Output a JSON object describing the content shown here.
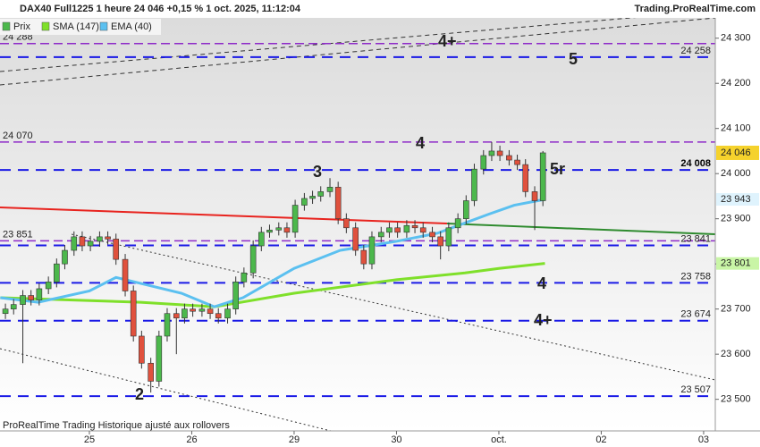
{
  "chart_data": {
    "type": "candlestick",
    "title": "DAX40 Full1225 1 heure 24 046 +0,15 % 1 oct. 2025, 11:12:04",
    "source": "Trading.ProRealTime.com",
    "footer": "ProRealTime Trading  Historique ajusté aux rollovers",
    "xlim": [
      -0.873,
      6.114
    ],
    "xticks": [
      {
        "value": 0,
        "label": "25"
      },
      {
        "value": 1,
        "label": "26"
      },
      {
        "value": 2,
        "label": "29"
      },
      {
        "value": 3,
        "label": "30"
      },
      {
        "value": 4,
        "label": "oct."
      },
      {
        "value": 5,
        "label": "02"
      },
      {
        "value": 6,
        "label": "03"
      }
    ],
    "ylim": [
      23430,
      24345
    ],
    "yticks": [
      {
        "value": 23500,
        "label": "23 500"
      },
      {
        "value": 23600,
        "label": "23 600"
      },
      {
        "value": 23700,
        "label": "23 700"
      },
      {
        "value": 23800,
        "label": "23 800"
      },
      {
        "value": 23900,
        "label": "23 900"
      },
      {
        "value": 24000,
        "label": "24 000"
      },
      {
        "value": 24100,
        "label": "24 100"
      },
      {
        "value": 24200,
        "label": "24 200"
      },
      {
        "value": 24300,
        "label": "24 300"
      }
    ],
    "series": [
      {
        "name": "Prix",
        "up_color": "#4cb84c",
        "down_color": "#e0513d",
        "last_label": "24 046",
        "x": [
          -0.82,
          -0.74,
          -0.65,
          -0.57,
          -0.49,
          -0.4,
          -0.32,
          -0.24,
          -0.15,
          -0.07,
          0.01,
          0.1,
          0.18,
          0.26,
          0.35,
          0.43,
          0.51,
          0.6,
          0.68,
          0.76,
          0.85,
          0.93,
          1.01,
          1.1,
          1.18,
          1.26,
          1.35,
          1.43,
          1.51,
          1.6,
          1.68,
          1.76,
          1.85,
          1.93,
          2.01,
          2.1,
          2.18,
          2.26,
          2.35,
          2.43,
          2.51,
          2.6,
          2.68,
          2.76,
          2.85,
          2.93,
          3.01,
          3.1,
          3.18,
          3.26,
          3.35,
          3.43,
          3.51,
          3.6,
          3.68,
          3.76,
          3.85,
          3.93,
          4.01,
          4.1,
          4.18,
          4.26,
          4.35,
          4.43
        ],
        "open": [
          23690,
          23700,
          23710,
          23730,
          23720,
          23745,
          23760,
          23800,
          23830,
          23860,
          23840,
          23850,
          23860,
          23855,
          23810,
          23740,
          23640,
          23580,
          23540,
          23640,
          23690,
          23680,
          23700,
          23695,
          23700,
          23690,
          23680,
          23700,
          23760,
          23780,
          23840,
          23870,
          23875,
          23880,
          23870,
          23930,
          23945,
          23950,
          23960,
          23970,
          23900,
          23880,
          23830,
          23800,
          23860,
          23870,
          23880,
          23870,
          23885,
          23880,
          23870,
          23860,
          23840,
          23880,
          23900,
          23940,
          24010,
          24040,
          24050,
          24040,
          24030,
          24020,
          23960,
          23940
        ],
        "high": [
          23712,
          23722,
          23742,
          23742,
          23757,
          23772,
          23812,
          23842,
          23872,
          23872,
          23862,
          23872,
          23872,
          23867,
          23822,
          23752,
          23652,
          23592,
          23652,
          23702,
          23702,
          23712,
          23712,
          23712,
          23712,
          23702,
          23712,
          23772,
          23792,
          23852,
          23882,
          23887,
          23892,
          23892,
          23942,
          23957,
          23962,
          23972,
          23990,
          23982,
          23912,
          23892,
          23842,
          23872,
          23882,
          23892,
          23892,
          23897,
          23897,
          23892,
          23882,
          23872,
          23892,
          23912,
          23952,
          24022,
          24052,
          24070,
          24062,
          24052,
          24042,
          24032,
          23972,
          24050
        ],
        "low": [
          23678,
          23688,
          23580,
          23708,
          23708,
          23733,
          23748,
          23788,
          23818,
          23828,
          23828,
          23838,
          23843,
          23798,
          23728,
          23628,
          23568,
          23515,
          23528,
          23628,
          23600,
          23668,
          23683,
          23683,
          23678,
          23668,
          23668,
          23688,
          23748,
          23768,
          23828,
          23858,
          23863,
          23858,
          23858,
          23918,
          23933,
          23938,
          23948,
          23888,
          23868,
          23818,
          23788,
          23788,
          23848,
          23858,
          23858,
          23858,
          23868,
          23858,
          23848,
          23810,
          23828,
          23868,
          23888,
          23928,
          23998,
          24028,
          24028,
          24018,
          24008,
          23948,
          23875,
          23928
        ],
        "close": [
          23700,
          23710,
          23730,
          23720,
          23745,
          23760,
          23800,
          23830,
          23860,
          23840,
          23850,
          23860,
          23855,
          23810,
          23740,
          23640,
          23580,
          23540,
          23640,
          23690,
          23680,
          23700,
          23695,
          23700,
          23690,
          23680,
          23700,
          23760,
          23780,
          23840,
          23870,
          23875,
          23880,
          23870,
          23930,
          23945,
          23950,
          23960,
          23970,
          23900,
          23880,
          23830,
          23800,
          23860,
          23870,
          23880,
          23870,
          23885,
          23880,
          23870,
          23860,
          23840,
          23880,
          23900,
          23940,
          24010,
          24040,
          24050,
          24040,
          24030,
          24020,
          23960,
          23940,
          24046
        ]
      }
    ],
    "indicators": [
      {
        "name": "SMA (147)",
        "color": "#7fe02a",
        "last_label": "23 801",
        "x": [
          -0.87,
          0.5,
          1.22,
          2.0,
          3.0,
          3.67,
          4.0,
          4.45
        ],
        "values": [
          23725,
          23715,
          23705,
          23735,
          23765,
          23780,
          23790,
          23801
        ]
      },
      {
        "name": "EMA (40)",
        "color": "#5bc0f0",
        "last_label": "23 943",
        "x": [
          -0.87,
          -0.5,
          0,
          0.26,
          0.9,
          1.22,
          1.5,
          2.0,
          2.45,
          3.0,
          3.4,
          3.9,
          4.15,
          4.45
        ],
        "values": [
          23725,
          23715,
          23740,
          23770,
          23735,
          23705,
          23725,
          23790,
          23830,
          23850,
          23868,
          23910,
          23930,
          23943
        ]
      }
    ],
    "levels": [
      {
        "value": 24288,
        "label": "24 288",
        "color": "#8e2bc8",
        "side": "left"
      },
      {
        "value": 24258,
        "label": "24 258",
        "color": "#1a1ae6",
        "side": "right"
      },
      {
        "value": 24070,
        "label": "24 070",
        "color": "#8e2bc8",
        "side": "left"
      },
      {
        "value": 24008,
        "label": "24 008",
        "color": "#1a1ae6",
        "side": "right"
      },
      {
        "value": 23851,
        "label": "23 851",
        "color": "#8e2bc8",
        "side": "left"
      },
      {
        "value": 23841,
        "label": "23 841",
        "color": "#1a1ae6",
        "side": "right"
      },
      {
        "value": 23758,
        "label": "23 758",
        "color": "#1a1ae6",
        "side": "right"
      },
      {
        "value": 23674,
        "label": "23 674",
        "color": "#1a1ae6",
        "side": "right"
      },
      {
        "value": 23507,
        "label": "23 507",
        "color": "#1a1ae6",
        "side": "right"
      }
    ],
    "waves": [
      "4+",
      "5",
      "4",
      "3",
      "5r",
      "4",
      "4+",
      "2"
    ]
  }
}
